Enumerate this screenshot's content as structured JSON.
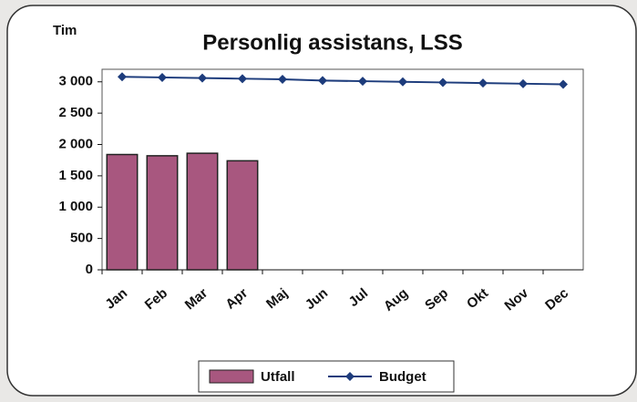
{
  "chart_data": {
    "type": "bar",
    "title": "Personlig assistans, LSS",
    "y_label": "Tim",
    "categories": [
      "Jan",
      "Feb",
      "Mar",
      "Apr",
      "Maj",
      "Jun",
      "Jul",
      "Aug",
      "Sep",
      "Okt",
      "Nov",
      "Dec"
    ],
    "series": [
      {
        "name": "Utfall",
        "type": "bar",
        "color": "#a8577f",
        "values": [
          1840,
          1820,
          1860,
          1740,
          null,
          null,
          null,
          null,
          null,
          null,
          null,
          null
        ]
      },
      {
        "name": "Budget",
        "type": "line",
        "color": "#1d3c7c",
        "values": [
          3080,
          3070,
          3060,
          3050,
          3040,
          3020,
          3010,
          3000,
          2990,
          2980,
          2970,
          2960
        ]
      }
    ],
    "ylim": [
      0,
      3200
    ],
    "yticks": [
      0,
      500,
      {
        "value": 1000,
        "label": "1 000"
      },
      {
        "value": 1500,
        "label": "1 500"
      },
      {
        "value": 2000,
        "label": "2 000"
      },
      {
        "value": 2500,
        "label": "2 500"
      },
      {
        "value": 3000,
        "label": "3 000"
      }
    ],
    "legend": "bottom"
  }
}
